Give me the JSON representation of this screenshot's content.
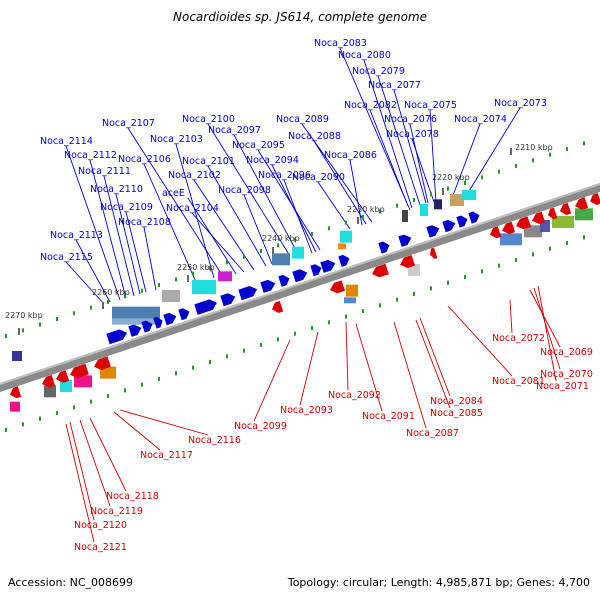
{
  "header": {
    "title": "Nocardioides sp. JS614, complete genome"
  },
  "footer": {
    "accession": "Accession: NC_008699",
    "topology": "Topology: circular; Length: 4,985,871 bp; Genes: 4,700"
  },
  "scale_labels": [
    "2210 kbp",
    "2220 kbp",
    "2230 kbp",
    "2240 kbp",
    "2250 kbp",
    "2260 kbp",
    "2270 kbp"
  ],
  "forward_genes": [
    "Noca_2083",
    "Noca_2080",
    "Noca_2079",
    "Noca_2077",
    "Noca_2082",
    "Noca_2075",
    "Noca_2073",
    "Noca_2076",
    "Noca_2074",
    "Noca_2078",
    "Noca_2089",
    "Noca_2088",
    "Noca_2086",
    "Noca_2090",
    "Noca_2100",
    "Noca_2097",
    "Noca_2107",
    "Noca_2103",
    "Noca_2095",
    "Noca_2094",
    "Noca_2096",
    "Noca_2098",
    "Noca_2101",
    "Noca_2102",
    "Noca_2104",
    "aceE",
    "Noca_2106",
    "Noca_2114",
    "Noca_2112",
    "Noca_2111",
    "Noca_2110",
    "Noca_2109",
    "Noca_2108",
    "Noca_2113",
    "Noca_2115"
  ],
  "reverse_genes": [
    "Noca_2072",
    "Noca_2069",
    "Noca_2070",
    "Noca_2071",
    "Noca_2081",
    "Noca_2084",
    "Noca_2085",
    "Noca_2087",
    "Noca_2091",
    "Noca_2092",
    "Noca_2093",
    "Noca_2099",
    "Noca_2116",
    "Noca_2117",
    "Noca_2118",
    "Noca_2119",
    "Noca_2120",
    "Noca_2121"
  ],
  "colors": {
    "forward": "#0000cc",
    "reverse": "#dd0000",
    "label_forward": "#0000cc",
    "label_reverse": "#cc0000",
    "tick": "#229922",
    "backbone": "#888888"
  }
}
